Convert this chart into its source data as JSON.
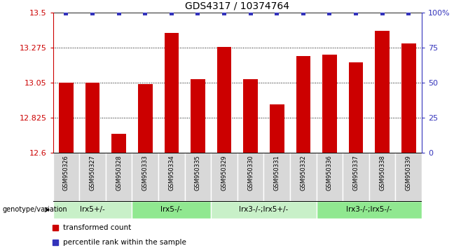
{
  "title": "GDS4317 / 10374764",
  "samples": [
    "GSM950326",
    "GSM950327",
    "GSM950328",
    "GSM950333",
    "GSM950334",
    "GSM950335",
    "GSM950329",
    "GSM950330",
    "GSM950331",
    "GSM950332",
    "GSM950336",
    "GSM950337",
    "GSM950338",
    "GSM950339"
  ],
  "bar_values": [
    13.05,
    13.05,
    12.72,
    13.04,
    13.37,
    13.07,
    13.28,
    13.07,
    12.91,
    13.22,
    13.23,
    13.18,
    13.38,
    13.3
  ],
  "groups": [
    {
      "label": "lrx5+/-",
      "start": 0,
      "end": 3,
      "color": "#c8f0c8"
    },
    {
      "label": "lrx5-/-",
      "start": 3,
      "end": 6,
      "color": "#90e890"
    },
    {
      "label": "lrx3-/-;lrx5+/-",
      "start": 6,
      "end": 10,
      "color": "#c8f0c8"
    },
    {
      "label": "lrx3-/-;lrx5-/-",
      "start": 10,
      "end": 14,
      "color": "#90e890"
    }
  ],
  "ymin": 12.6,
  "ymax": 13.5,
  "yticks": [
    12.6,
    12.825,
    13.05,
    13.275,
    13.5
  ],
  "bar_color": "#cc0000",
  "percentile_color": "#3333bb",
  "bg_color": "#ffffff",
  "label_transformed": "transformed count",
  "label_percentile": "percentile rank within the sample",
  "genotype_label": "genotype/variation",
  "right_yticks": [
    0,
    25,
    50,
    75,
    100
  ],
  "right_yticklabels": [
    "0",
    "25",
    "50",
    "75",
    "100%"
  ]
}
